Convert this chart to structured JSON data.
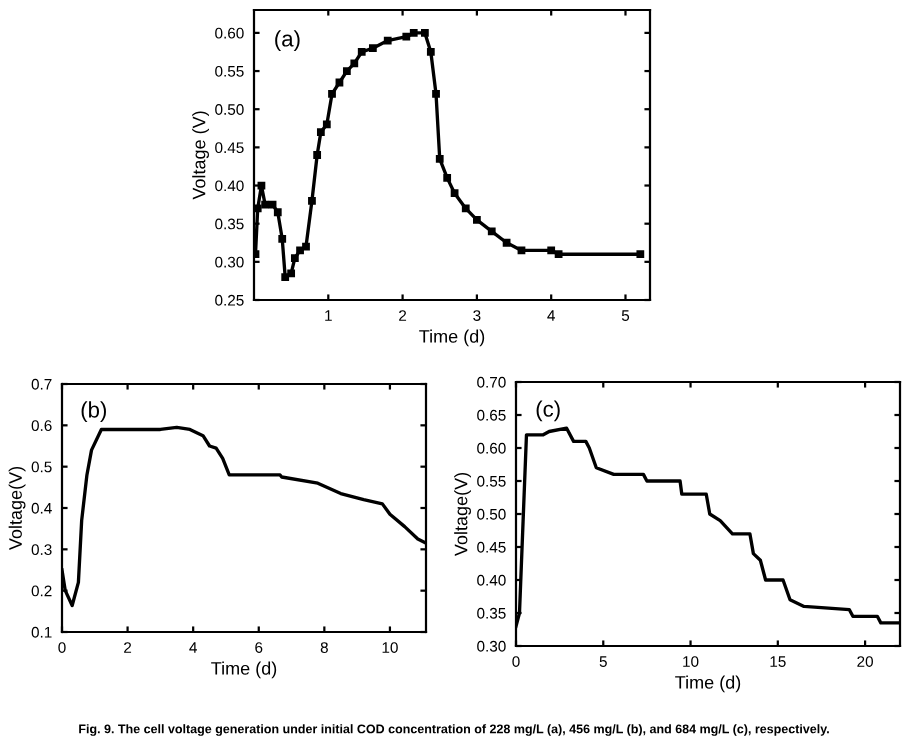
{
  "chart_data": [
    {
      "type": "line",
      "xlabel": "Time (d)",
      "ylabel": "Voltage (V)",
      "annotations": [
        "(a)"
      ],
      "marker": "square",
      "line_style": "solid",
      "grid": false,
      "legend": false,
      "xlim": [
        0,
        5.33
      ],
      "ylim": [
        0.25,
        0.63
      ],
      "xticks": [
        1,
        2,
        3,
        4,
        5
      ],
      "yticks": [
        {
          "value": 0.25,
          "label": "0.25"
        },
        {
          "value": 0.3,
          "label": "0.30"
        },
        {
          "value": 0.35,
          "label": "0.35"
        },
        {
          "value": 0.4,
          "label": "0.40"
        },
        {
          "value": 0.45,
          "label": "0.45"
        },
        {
          "value": 0.5,
          "label": "0.50"
        },
        {
          "value": 0.55,
          "label": "0.55"
        },
        {
          "value": 0.6,
          "label": "0.60"
        }
      ],
      "series": [
        {
          "color": "#000000",
          "x": [
            0.02,
            0.05,
            0.1,
            0.15,
            0.25,
            0.32,
            0.38,
            0.42,
            0.5,
            0.55,
            0.62,
            0.7,
            0.78,
            0.85,
            0.9,
            0.98,
            1.05,
            1.15,
            1.25,
            1.35,
            1.45,
            1.6,
            1.8,
            2.05,
            2.15,
            2.3,
            2.38,
            2.45,
            2.5,
            2.6,
            2.7,
            2.85,
            3.0,
            3.2,
            3.4,
            3.6,
            4.0,
            4.1,
            5.2
          ],
          "values": [
            0.31,
            0.37,
            0.4,
            0.375,
            0.375,
            0.365,
            0.33,
            0.28,
            0.285,
            0.305,
            0.315,
            0.32,
            0.38,
            0.44,
            0.47,
            0.48,
            0.52,
            0.535,
            0.55,
            0.56,
            0.575,
            0.58,
            0.59,
            0.595,
            0.6,
            0.6,
            0.575,
            0.52,
            0.435,
            0.41,
            0.39,
            0.37,
            0.355,
            0.34,
            0.325,
            0.315,
            0.315,
            0.31,
            0.31
          ]
        }
      ]
    },
    {
      "type": "line",
      "xlabel": "Time (d)",
      "ylabel": "Voltage(V)",
      "annotations": [
        "(b)"
      ],
      "marker": "none",
      "line_style": "solid",
      "grid": false,
      "legend": false,
      "xlim": [
        0,
        11.1
      ],
      "ylim": [
        0.1,
        0.7
      ],
      "xticks": [
        0,
        2,
        4,
        6,
        8,
        10
      ],
      "yticks": [
        0.1,
        0.2,
        0.3,
        0.4,
        0.5,
        0.6,
        0.7
      ],
      "series": [
        {
          "color": "#000000",
          "x": [
            0,
            0.1,
            0.31,
            0.5,
            0.6,
            0.76,
            0.9,
            1.2,
            2.0,
            3.0,
            3.5,
            3.9,
            4.3,
            4.5,
            4.7,
            4.9,
            5.1,
            6.65,
            6.7,
            7.8,
            8.5,
            9.2,
            9.77,
            10.0,
            10.45,
            10.85,
            11.1
          ],
          "values": [
            0.25,
            0.2,
            0.164,
            0.22,
            0.37,
            0.48,
            0.54,
            0.59,
            0.59,
            0.59,
            0.595,
            0.59,
            0.575,
            0.55,
            0.545,
            0.52,
            0.48,
            0.48,
            0.475,
            0.46,
            0.435,
            0.42,
            0.41,
            0.385,
            0.355,
            0.325,
            0.315
          ]
        }
      ]
    },
    {
      "type": "line",
      "xlabel": "Time (d)",
      "ylabel": "Voltage(V)",
      "annotations": [
        "(c)",
        "Fig. 9. The cell voltage generation under initial COD concentration of 228 mg/L (a), 456 mg/L (b), and 684 mg/L (c), respectively."
      ],
      "marker": "none",
      "line_style": "solid",
      "grid": false,
      "legend": false,
      "xlim": [
        0,
        22
      ],
      "ylim": [
        0.3,
        0.7
      ],
      "xticks": [
        0,
        5,
        10,
        15,
        20
      ],
      "yticks": [
        {
          "value": 0.3,
          "label": "0.30"
        },
        {
          "value": 0.35,
          "label": "0.35"
        },
        {
          "value": 0.4,
          "label": "0.40"
        },
        {
          "value": 0.45,
          "label": "0.45"
        },
        {
          "value": 0.5,
          "label": "0.50"
        },
        {
          "value": 0.55,
          "label": "0.55"
        },
        {
          "value": 0.6,
          "label": "0.60"
        },
        {
          "value": 0.65,
          "label": "0.65"
        },
        {
          "value": 0.7,
          "label": "0.70"
        }
      ],
      "series": [
        {
          "color": "#000000",
          "x": [
            0,
            0.2,
            0.6,
            1.56,
            1.9,
            2.9,
            3.3,
            4.0,
            4.2,
            4.6,
            5.6,
            7.3,
            7.5,
            9.4,
            9.5,
            10.9,
            11.1,
            11.7,
            12.4,
            13.4,
            13.6,
            14.0,
            14.3,
            15.3,
            15.7,
            16.5,
            19.1,
            19.3,
            20.7,
            20.9,
            22
          ],
          "values": [
            0.33,
            0.35,
            0.62,
            0.62,
            0.625,
            0.63,
            0.61,
            0.61,
            0.6,
            0.57,
            0.56,
            0.56,
            0.55,
            0.55,
            0.53,
            0.53,
            0.5,
            0.49,
            0.47,
            0.47,
            0.44,
            0.43,
            0.4,
            0.4,
            0.37,
            0.36,
            0.355,
            0.345,
            0.345,
            0.335,
            0.335
          ]
        }
      ]
    }
  ]
}
